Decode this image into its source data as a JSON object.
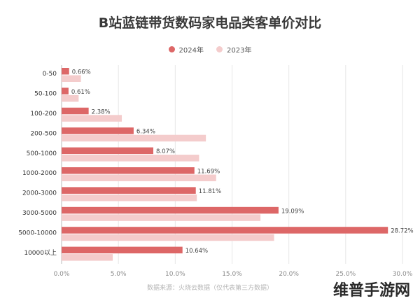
{
  "chart_data": {
    "type": "bar",
    "title": "B站蓝链带货数码家电品类客单价对比",
    "categories": [
      "0-50",
      "50-100",
      "100-200",
      "200-500",
      "500-1000",
      "1000-2000",
      "2000-3000",
      "3000-5000",
      "5000-10000",
      "10000以上"
    ],
    "series": [
      {
        "name": "2024年",
        "color": "#dd6767",
        "values": [
          0.66,
          0.61,
          2.38,
          6.34,
          8.07,
          11.69,
          11.81,
          19.09,
          28.72,
          10.64
        ],
        "labels": [
          "0.66%",
          "0.61%",
          "2.38%",
          "6.34%",
          "8.07%",
          "11.69%",
          "11.81%",
          "19.09%",
          "28.72%",
          "10.64%"
        ]
      },
      {
        "name": "2023年",
        "color": "#f4cccc",
        "values": [
          1.7,
          1.5,
          5.3,
          12.7,
          12.1,
          13.6,
          11.9,
          17.5,
          18.7,
          4.5
        ]
      }
    ],
    "xlim": [
      0,
      30
    ],
    "xticks": [
      "0.0%",
      "5.0%",
      "10.0%",
      "15.0%",
      "20.0%",
      "25.0%",
      "30.0%"
    ],
    "grid": true,
    "legend_position": "top-center"
  },
  "footer": {
    "source": "数据来源：火烧云数据（仅代表第三方数据）",
    "watermark": "维普手游网"
  }
}
